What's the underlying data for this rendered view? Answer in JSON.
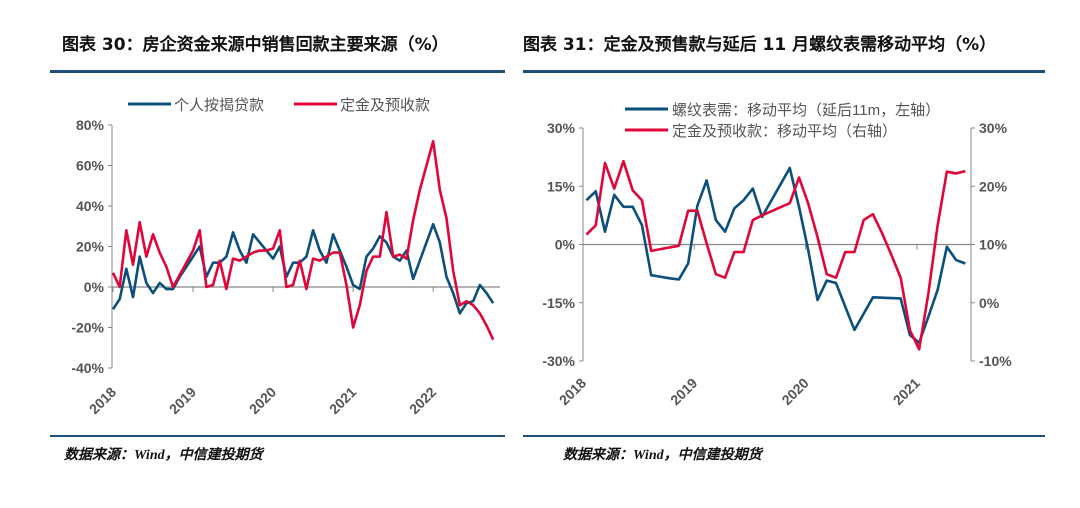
{
  "colors": {
    "blue": "#0b4f7c",
    "red": "#e0063a",
    "axis": "#888888",
    "tick_text": "#555555",
    "rule": "#1f4e79"
  },
  "left": {
    "title": "图表 30：房企资金来源中销售回款主要来源（%）",
    "source": "数据来源：Wind，中信建投期货"
  },
  "right": {
    "title": "图表 31：定金及预售款与延后 11 月螺纹表需移动平均（%）",
    "source": "数据来源：Wind，中信建投期货"
  },
  "chart_data": [
    {
      "type": "line",
      "title": "图表 30：房企资金来源中销售回款主要来源（%）",
      "x_unit": "month index from 2018-01",
      "x_tick_labels": [
        "2018",
        "2019",
        "2020",
        "2021",
        "2022"
      ],
      "y_tick_labels": [
        "80%",
        "60%",
        "40%",
        "20%",
        "0%",
        "-20%",
        "-40%"
      ],
      "ylim": [
        -40,
        80
      ],
      "legend": "top",
      "grid": false,
      "series": [
        {
          "name": "个人按揭贷款",
          "color": "#0b4f7c",
          "values": [
            -11,
            -6,
            9,
            -5,
            15,
            2,
            -3,
            2,
            -1,
            -1,
            5,
            10,
            15,
            20,
            5,
            12,
            12,
            15,
            27,
            18,
            12,
            26,
            22,
            18,
            14,
            20,
            5,
            12,
            12,
            15,
            28,
            18,
            12,
            26,
            18,
            10,
            1,
            -1,
            15,
            19,
            25,
            22,
            15,
            13,
            18,
            4,
            13,
            22,
            31,
            22,
            5,
            -3,
            -13,
            -8,
            -7,
            1,
            -3,
            -8
          ]
        },
        {
          "name": "定金及预收款",
          "color": "#e0063a",
          "values": [
            7,
            0,
            28,
            11,
            32,
            15,
            26,
            17,
            10,
            0,
            6,
            12,
            18,
            28,
            0,
            1,
            13,
            -1,
            14,
            13,
            15,
            17,
            18,
            18,
            19,
            28,
            0,
            1,
            13,
            -1,
            14,
            13,
            15,
            17,
            17,
            1,
            -20,
            -9,
            8,
            15,
            15,
            37,
            15,
            16,
            14,
            33,
            48,
            60,
            72,
            48,
            34,
            8,
            -9,
            -7,
            -9,
            -13,
            -19,
            -26
          ]
        }
      ]
    },
    {
      "type": "line",
      "title": "图表 31：定金及预售款与延后 11 月螺纹表需移动平均（%）",
      "x_unit": "month index from 2018-01",
      "x_tick_labels": [
        "2018",
        "2019",
        "2020",
        "2021"
      ],
      "y_tick_labels": [
        "30%",
        "15%",
        "0%",
        "-15%",
        "-30%"
      ],
      "y2_tick_labels": [
        "30%",
        "20%",
        "10%",
        "0%",
        "-10%"
      ],
      "ylim": [
        -30,
        30
      ],
      "y2lim": [
        -10,
        30
      ],
      "legend": "top",
      "grid": false,
      "series": [
        {
          "name": "螺纹表需：移动平均（延后11m，左轴）",
          "axis": "left",
          "color": "#0b4f7c",
          "values": [
            11.4,
            13.7,
            3.3,
            12.8,
            9.7,
            9.7,
            5,
            -7.9,
            -8.3,
            -8.7,
            -9,
            -4.9,
            10,
            16.5,
            6.3,
            3.3,
            9.3,
            11.4,
            14.4,
            7.1,
            11.3,
            15.5,
            19.7,
            9.7,
            -1.5,
            -14.3,
            -9.3,
            -9.9,
            -16,
            -22,
            -17.8,
            -13.6,
            -13.7,
            -13.8,
            -13.9,
            -23.3,
            -25.3,
            -18.6,
            -11.7,
            -0.6,
            -4,
            -4.9
          ]
        },
        {
          "name": "定金及预收款：移动平均（右轴）",
          "axis": "right",
          "color": "#e0063a",
          "values": [
            11.7,
            13.3,
            24,
            19.6,
            24.3,
            19.3,
            17.6,
            8.9,
            9.2,
            9.5,
            9.8,
            15.8,
            15.8,
            10.2,
            4.9,
            4.3,
            8.7,
            8.7,
            14.2,
            15,
            15.7,
            16.4,
            17.1,
            21.5,
            17,
            11.3,
            4.9,
            4.3,
            8.7,
            8.7,
            14.2,
            15.2,
            11.9,
            8.2,
            4.3,
            -4.7,
            -8,
            1.6,
            13.3,
            22.5,
            22.2,
            22.6
          ]
        }
      ]
    }
  ]
}
